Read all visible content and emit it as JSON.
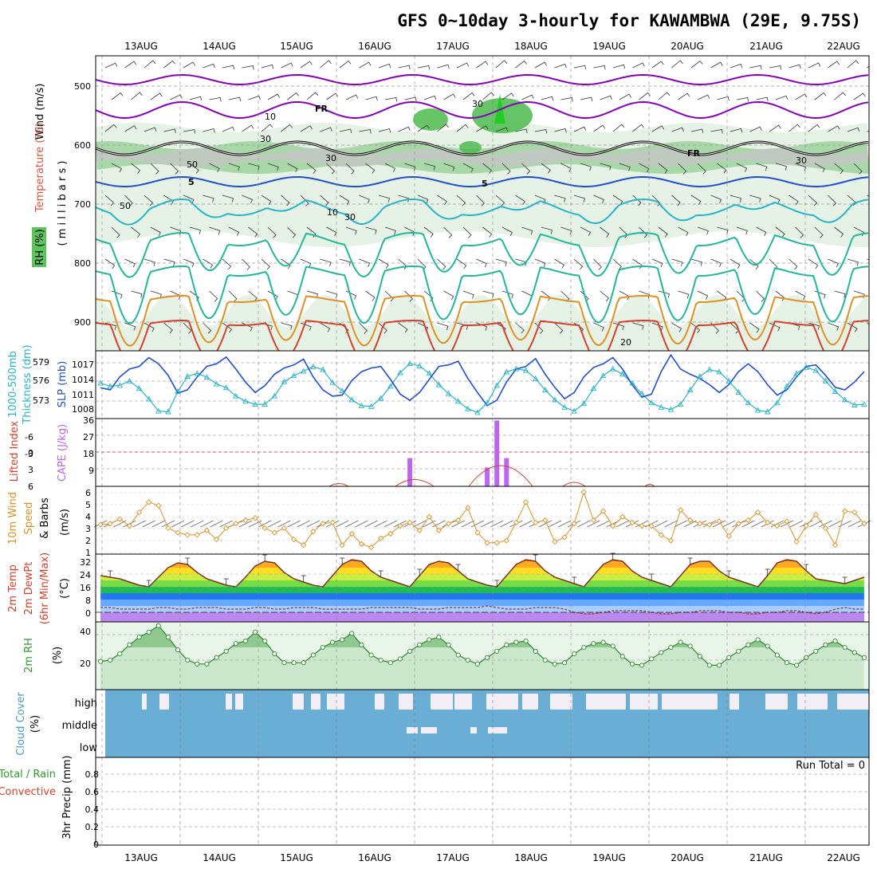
{
  "title": "GFS 0~10day 3-hourly for KAWAMBWA (29E, 9.75S)",
  "dates": [
    "13AUG",
    "14AUG",
    "15AUG",
    "16AUG",
    "17AUG",
    "18AUG",
    "19AUG",
    "20AUG",
    "21AUG",
    "22AUG"
  ],
  "colors": {
    "purple": "#8800bb",
    "blue": "#1f4ed0",
    "cyan": "#26b5c9",
    "teal": "#20b89a",
    "orange": "#e09020",
    "red": "#d8402a",
    "green": "#2aa02a",
    "cloud": "#6aaed6",
    "cape": "#bb66ee",
    "rhlight": "#e6f2e6",
    "rhmid": "#a8d8a8",
    "rhdark": "#4cbb4c",
    "grid": "#aaaaaa"
  },
  "panels": {
    "upper": {
      "ylabel_wind": "Wind (m/s)",
      "ylabel_temp": "Temperature (°C)",
      "ylabel_rh": "RH (%)",
      "ylabel_pres": "( m i l l i b a r s )",
      "pressure_ticks": [
        "500",
        "600",
        "700",
        "800",
        "900"
      ],
      "contour_labels": [
        "FR",
        "FR",
        "5",
        "5",
        "10",
        "20",
        "30",
        "30",
        "30",
        "30",
        "10",
        "50",
        "50",
        "30"
      ]
    },
    "thick": {
      "ylabel_a": "1000-500mb",
      "ylabel_b": "Thickness (dm)",
      "ylabel_c": "SLP (mb)",
      "left_ticks": [
        "579",
        "576",
        "573"
      ],
      "right_ticks": [
        "1017",
        "1014",
        "1011",
        "1008"
      ]
    },
    "cape": {
      "ylabel_li": "Lifted Index",
      "ylabel_cape": "CAPE (J/kg)",
      "left_ticks": [
        "-6",
        "-3",
        "0",
        "3",
        "6"
      ],
      "right_ticks": [
        "36",
        "27",
        "18",
        "9"
      ]
    },
    "wind": {
      "ylabel_a": "10m Wind",
      "ylabel_b": "Speed",
      "ylabel_c": "& Barbs",
      "ylabel_unit": "(m/s)",
      "ticks": [
        "6",
        "5",
        "4",
        "3",
        "2",
        "1"
      ]
    },
    "temp": {
      "ylabel_a": "2m Temp",
      "ylabel_b": "2m DewPt",
      "ylabel_c": "(6hr Min/Max)",
      "ylabel_unit": "(°C)",
      "ticks": [
        "32",
        "24",
        "16",
        "8",
        "0"
      ]
    },
    "rh": {
      "ylabel_a": "2m RH",
      "ylabel_unit": "(%)",
      "ticks": [
        "40",
        "20"
      ]
    },
    "cloud": {
      "ylabel_a": "Cloud Cover",
      "ylabel_unit": "(%)",
      "levels": [
        "high",
        "middle",
        "low"
      ]
    },
    "precip": {
      "ylabel_a": "Total / Rain",
      "ylabel_b": "Convective",
      "ylabel_c": "3hr Precip (mm)",
      "ticks": [
        "0.8",
        "0.6",
        "0.4",
        "0.2",
        "0"
      ],
      "run_total": "Run Total = 0"
    }
  },
  "chart_data": {
    "type": "meteogram",
    "x_start": "12AUG 12Z",
    "step_hours": 3,
    "thickness_dm": [
      576.2,
      575.8,
      575.9,
      576.5,
      575.5,
      574.1,
      572.5,
      572.4,
      575.1,
      577.1,
      577.5,
      577.0,
      576.1,
      575.6,
      574.5,
      573.8,
      573.4,
      573.4,
      574.5,
      576.4,
      577.2,
      577.8,
      578.4,
      578.0,
      576.3,
      575.2,
      574.0,
      573.2,
      573.1,
      574.2,
      575.8,
      577.6,
      578.8,
      578.5,
      577.5,
      576.0,
      574.8,
      573.8,
      572.8,
      572.3,
      573.6,
      575.9,
      577.7,
      578.1,
      577.9,
      576.8,
      575.3,
      574.0,
      573.0,
      572.5,
      573.5,
      575.5,
      577.2,
      578.1,
      577.4,
      576.2,
      574.8,
      573.6,
      573.0,
      572.7,
      573.4,
      575.3,
      577.1,
      578.0,
      577.7,
      576.5,
      575.0,
      573.6,
      572.6,
      572.4,
      573.6,
      575.8,
      577.5,
      578.3,
      577.9,
      576.5,
      575.1,
      574.0,
      573.3,
      573.4
    ],
    "slp_mb": [
      1012.4,
      1012.0,
      1014.5,
      1016.0,
      1016.5,
      1018.2,
      1017.0,
      1014.8,
      1011.4,
      1012.0,
      1014.5,
      1016.5,
      1017.0,
      1018.3,
      1016.0,
      1013.5,
      1011.5,
      1012.8,
      1015.0,
      1016.2,
      1016.8,
      1017.9,
      1014.5,
      1012.0,
      1010.8,
      1011.0,
      1013.8,
      1015.5,
      1016.2,
      1016.5,
      1014.0,
      1011.2,
      1010.0,
      1011.5,
      1014.0,
      1016.5,
      1016.8,
      1017.5,
      1014.2,
      1011.5,
      1009.0,
      1010.0,
      1013.5,
      1016.0,
      1016.5,
      1018.0,
      1015.0,
      1012.5,
      1010.3,
      1011.5,
      1014.5,
      1016.3,
      1017.0,
      1018.2,
      1016.0,
      1013.0,
      1010.6,
      1011.2,
      1015.5,
      1018.7,
      1016.0,
      1015.0,
      1014.2,
      1013.0,
      1011.5,
      1013.0,
      1015.5,
      1017.0,
      1015.5,
      1013.0,
      1011.0,
      1012.0,
      1014.5,
      1016.5,
      1016.8,
      1014.8,
      1012.5,
      1012.0,
      1013.5,
      1015.5
    ],
    "cape_jkg": [
      0,
      0,
      0,
      0,
      0,
      0,
      0,
      0,
      0,
      0,
      0,
      0,
      0,
      0,
      0,
      0,
      0,
      0,
      0,
      0,
      0,
      0,
      0,
      0,
      0,
      0,
      0,
      0,
      0,
      0,
      0,
      0,
      15,
      0,
      0,
      0,
      0,
      0,
      0,
      0,
      10,
      35,
      15,
      0,
      0,
      0,
      0,
      0,
      0,
      0,
      0,
      0,
      0,
      0,
      0,
      0,
      0,
      0,
      0,
      0,
      0,
      0,
      0,
      0,
      0,
      0,
      0,
      0,
      0,
      0,
      0,
      0,
      0,
      0,
      0,
      0,
      0,
      0,
      0,
      0
    ],
    "wind_speed_ms": [
      3.1,
      3.2,
      3.6,
      3.0,
      4.2,
      5.1,
      4.8,
      2.8,
      2.4,
      2.2,
      2.2,
      2.6,
      1.8,
      2.8,
      3.2,
      3.5,
      3.7,
      2.8,
      2.4,
      2.8,
      1.8,
      1.3,
      2.5,
      3.2,
      3.3,
      1.3,
      2.3,
      1.4,
      1.1,
      1.9,
      2.3,
      3.0,
      3.3,
      2.6,
      3.8,
      2.6,
      3.2,
      3.5,
      4.6,
      2.4,
      1.5,
      1.5,
      1.7,
      3.3,
      5.1,
      3.3,
      3.5,
      1.6,
      2.0,
      3.2,
      6.0,
      3.5,
      4.3,
      3.0,
      3.8,
      3.3,
      3.0,
      3.0,
      2.2,
      1.7,
      4.4,
      3.5,
      3.2,
      3.1,
      3.4,
      2.1,
      3.2,
      3.5,
      4.2,
      3.3,
      3.0,
      3.4,
      1.6,
      3.0,
      4.0,
      2.8,
      1.3,
      4.3,
      4.2,
      3.2
    ],
    "temp_c": [
      23,
      22,
      21,
      19,
      17,
      16,
      22,
      28,
      31,
      30,
      25,
      21,
      19,
      17,
      16,
      22,
      29,
      32,
      31,
      25,
      21,
      19,
      17,
      16,
      23,
      30,
      33,
      32,
      26,
      22,
      20,
      18,
      16,
      23,
      30,
      32,
      31,
      26,
      21,
      19,
      17,
      16,
      23,
      30,
      33,
      32,
      26,
      22,
      20,
      18,
      16,
      23,
      30,
      33,
      32,
      26,
      22,
      20,
      18,
      16,
      23,
      30,
      32,
      32,
      26,
      22,
      20,
      18,
      16,
      23,
      31,
      33,
      32,
      26,
      21,
      20,
      19,
      18,
      20,
      22
    ],
    "dewpt_c": [
      3,
      3,
      2,
      2,
      2,
      2,
      3,
      3,
      2,
      2,
      3,
      3,
      3,
      2,
      2,
      2,
      3,
      3,
      2,
      2,
      3,
      3,
      3,
      2,
      2,
      2,
      2,
      2,
      3,
      3,
      3,
      3,
      3,
      2,
      2,
      2,
      3,
      3,
      3,
      3,
      4,
      3,
      2,
      2,
      2,
      3,
      3,
      3,
      2,
      0,
      -1,
      -1,
      0,
      1,
      1,
      1,
      1,
      0,
      -1,
      -1,
      0,
      0,
      1,
      1,
      1,
      0,
      0,
      -1,
      -1,
      0,
      0,
      1,
      1,
      0,
      -1,
      0,
      2,
      3,
      2,
      2
    ],
    "rh_pct": [
      19,
      20,
      25,
      32,
      38,
      42,
      47,
      38,
      28,
      20,
      17,
      17,
      22,
      27,
      33,
      35,
      42,
      35,
      25,
      18,
      18,
      18,
      24,
      30,
      34,
      36,
      41,
      32,
      24,
      20,
      18,
      21,
      27,
      32,
      36,
      38,
      32,
      24,
      20,
      17,
      22,
      27,
      32,
      34,
      35,
      27,
      20,
      17,
      18,
      25,
      30,
      33,
      34,
      31,
      23,
      17,
      16,
      21,
      26,
      30,
      34,
      31,
      23,
      16,
      16,
      22,
      27,
      32,
      36,
      31,
      24,
      18,
      16,
      22,
      27,
      32,
      35,
      30,
      26,
      22
    ],
    "precip_mm": [
      0,
      0,
      0,
      0,
      0,
      0,
      0,
      0,
      0,
      0
    ],
    "run_total_mm": 0
  }
}
